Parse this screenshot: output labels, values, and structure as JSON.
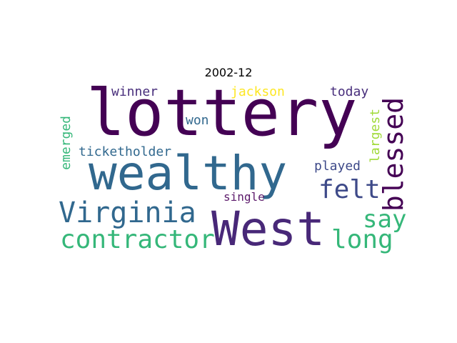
{
  "title": "2002-12",
  "words": [
    {
      "text": "lottery",
      "color": "#440154"
    },
    {
      "text": "wealthy",
      "color": "#31688e"
    },
    {
      "text": "West",
      "color": "#482878"
    },
    {
      "text": "Virginia",
      "color": "#31688e"
    },
    {
      "text": "contractor",
      "color": "#35b779"
    },
    {
      "text": "blessed",
      "color": "#440154"
    },
    {
      "text": "felt",
      "color": "#3e4a89"
    },
    {
      "text": "say",
      "color": "#35b779"
    },
    {
      "text": "long",
      "color": "#35b779"
    },
    {
      "text": "winner",
      "color": "#472d7b"
    },
    {
      "text": "jackson",
      "color": "#fde725"
    },
    {
      "text": "today",
      "color": "#472d7b"
    },
    {
      "text": "won",
      "color": "#31688e"
    },
    {
      "text": "ticketholder",
      "color": "#31688e"
    },
    {
      "text": "played",
      "color": "#3e4a89"
    },
    {
      "text": "largest",
      "color": "#a0da39"
    },
    {
      "text": "single",
      "color": "#5c1a6b"
    },
    {
      "text": "emerged",
      "color": "#35b779"
    }
  ]
}
